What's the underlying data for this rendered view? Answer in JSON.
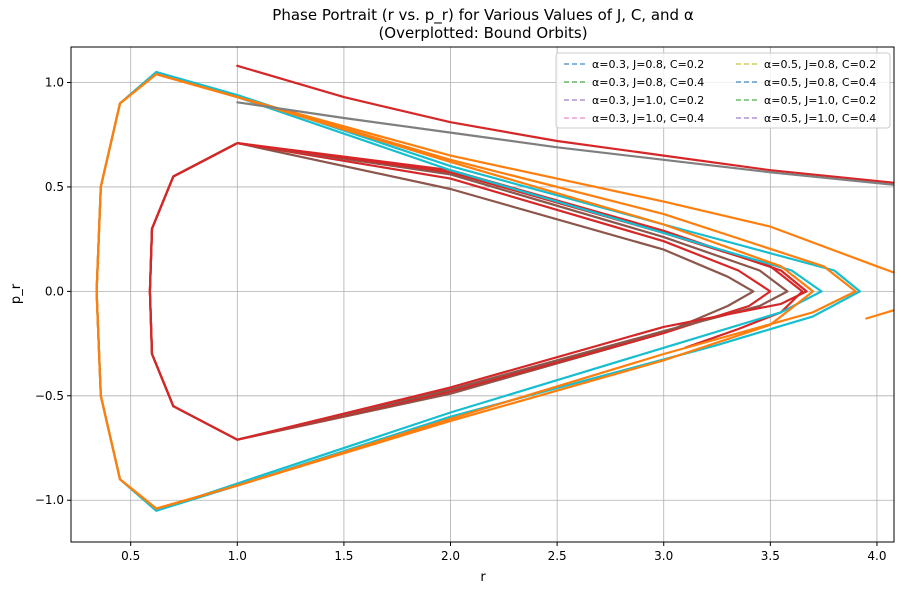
{
  "chart_data": {
    "type": "line",
    "title": "Phase Portrait (r vs. p_r) for Various Values of J, C, and α",
    "subtitle": "(Overplotted: Bound Orbits)",
    "xlabel": "r",
    "ylabel": "p_r",
    "xlim": [
      0.22,
      4.08
    ],
    "ylim": [
      -1.2,
      1.17
    ],
    "x_ticks": [
      {
        "value": 0.5,
        "label": "0.5"
      },
      {
        "value": 1.0,
        "label": "1.0"
      },
      {
        "value": 1.5,
        "label": "1.5"
      },
      {
        "value": 2.0,
        "label": "2.0"
      },
      {
        "value": 2.5,
        "label": "2.5"
      },
      {
        "value": 3.0,
        "label": "3.0"
      },
      {
        "value": 3.5,
        "label": "3.5"
      },
      {
        "value": 4.0,
        "label": "4.0"
      }
    ],
    "y_ticks": [
      {
        "value": -1.0,
        "label": "−1.0"
      },
      {
        "value": -0.5,
        "label": "−0.5"
      },
      {
        "value": 0.0,
        "label": "0.0"
      },
      {
        "value": 0.5,
        "label": "0.5"
      },
      {
        "value": 1.0,
        "label": "1.0"
      }
    ],
    "grid": true,
    "legend_position": "top-right",
    "legend_columns": 2,
    "legend": [
      {
        "label": "α=0.3, J=0.8, C=0.2",
        "color": "#1f77b4",
        "style": "dashed"
      },
      {
        "label": "α=0.3, J=0.8, C=0.4",
        "color": "#2ca02c",
        "style": "dashed"
      },
      {
        "label": "α=0.3, J=1.0, C=0.2",
        "color": "#9467bd",
        "style": "dashed"
      },
      {
        "label": "α=0.3, J=1.0, C=0.4",
        "color": "#e377c2",
        "style": "dashed"
      },
      {
        "label": "α=0.5, J=0.8, C=0.2",
        "color": "#bcbd22",
        "style": "dashed"
      },
      {
        "label": "α=0.5, J=0.8, C=0.4",
        "color": "#1f77b4",
        "style": "dashed"
      },
      {
        "label": "α=0.5, J=1.0, C=0.2",
        "color": "#2ca02c",
        "style": "dashed"
      },
      {
        "label": "α=0.5, J=1.0, C=0.4",
        "color": "#9467bd",
        "style": "dashed"
      }
    ],
    "series": [
      {
        "color": "#8c564b",
        "points": [
          [
            1.0,
            0.71
          ],
          [
            0.7,
            0.55
          ],
          [
            0.6,
            0.3
          ],
          [
            0.59,
            0.0
          ],
          [
            0.6,
            -0.3
          ],
          [
            0.7,
            -0.55
          ],
          [
            1.0,
            -0.71
          ],
          [
            2.0,
            -0.49
          ],
          [
            3.0,
            -0.2
          ],
          [
            3.3,
            -0.07
          ],
          [
            3.42,
            0.0
          ],
          [
            3.3,
            0.07
          ],
          [
            3.0,
            0.2
          ],
          [
            2.0,
            0.49
          ],
          [
            1.0,
            0.71
          ]
        ]
      },
      {
        "color": "#d62728",
        "points": [
          [
            1.0,
            0.71
          ],
          [
            0.7,
            0.55
          ],
          [
            0.6,
            0.3
          ],
          [
            0.59,
            0.0
          ],
          [
            0.6,
            -0.3
          ],
          [
            0.7,
            -0.55
          ],
          [
            1.0,
            -0.71
          ],
          [
            2.0,
            -0.48
          ],
          [
            3.0,
            -0.2
          ],
          [
            3.4,
            -0.07
          ],
          [
            3.5,
            0.0
          ],
          [
            3.35,
            0.1
          ],
          [
            3.0,
            0.24
          ],
          [
            2.0,
            0.54
          ],
          [
            1.0,
            0.71
          ]
        ]
      },
      {
        "color": "#8c564b",
        "points": [
          [
            1.0,
            0.71
          ],
          [
            0.7,
            0.55
          ],
          [
            0.6,
            0.3
          ],
          [
            0.59,
            0.0
          ],
          [
            0.6,
            -0.3
          ],
          [
            0.7,
            -0.55
          ],
          [
            1.0,
            -0.71
          ],
          [
            2.0,
            -0.47
          ],
          [
            3.0,
            -0.19
          ],
          [
            3.45,
            -0.07
          ],
          [
            3.58,
            0.0
          ],
          [
            3.45,
            0.1
          ],
          [
            3.0,
            0.26
          ],
          [
            2.0,
            0.56
          ],
          [
            1.0,
            0.71
          ]
        ]
      },
      {
        "color": "#d62728",
        "points": [
          [
            1.0,
            0.71
          ],
          [
            0.7,
            0.55
          ],
          [
            0.6,
            0.3
          ],
          [
            0.59,
            0.0
          ],
          [
            0.6,
            -0.3
          ],
          [
            0.7,
            -0.55
          ],
          [
            1.0,
            -0.71
          ],
          [
            2.0,
            -0.46
          ],
          [
            3.0,
            -0.17
          ],
          [
            3.55,
            -0.06
          ],
          [
            3.67,
            0.0
          ],
          [
            3.55,
            0.1
          ],
          [
            3.0,
            0.29
          ],
          [
            2.0,
            0.58
          ],
          [
            1.0,
            0.71
          ]
        ]
      },
      {
        "color": "#d62728",
        "points": [
          [
            3.1,
            -0.27
          ],
          [
            3.35,
            -0.18
          ],
          [
            3.55,
            -0.1
          ],
          [
            3.65,
            0.0
          ],
          [
            3.5,
            0.12
          ],
          [
            3.0,
            0.28
          ],
          [
            2.0,
            0.57
          ],
          [
            1.0,
            0.71
          ]
        ]
      },
      {
        "color": "#17becf",
        "points": [
          [
            0.62,
            1.05
          ],
          [
            0.45,
            0.9
          ],
          [
            0.36,
            0.5
          ],
          [
            0.34,
            0.0
          ],
          [
            0.36,
            -0.5
          ],
          [
            0.45,
            -0.9
          ],
          [
            0.62,
            -1.05
          ],
          [
            1.0,
            -0.92
          ],
          [
            2.0,
            -0.58
          ],
          [
            3.0,
            -0.27
          ],
          [
            3.55,
            -0.1
          ],
          [
            3.74,
            0.0
          ],
          [
            3.6,
            0.1
          ],
          [
            3.0,
            0.28
          ],
          [
            2.0,
            0.58
          ],
          [
            1.0,
            0.93
          ],
          [
            0.62,
            1.05
          ]
        ]
      },
      {
        "color": "#17becf",
        "points": [
          [
            0.62,
            1.05
          ],
          [
            0.45,
            0.9
          ],
          [
            0.36,
            0.5
          ],
          [
            0.34,
            0.0
          ],
          [
            0.36,
            -0.5
          ],
          [
            0.45,
            -0.9
          ],
          [
            0.62,
            -1.05
          ],
          [
            1.0,
            -0.93
          ],
          [
            2.0,
            -0.6
          ],
          [
            3.24,
            -0.26
          ],
          [
            3.7,
            -0.12
          ],
          [
            3.92,
            0.0
          ],
          [
            3.8,
            0.1
          ],
          [
            3.0,
            0.32
          ],
          [
            2.0,
            0.6
          ],
          [
            1.0,
            0.94
          ],
          [
            0.62,
            1.05
          ]
        ]
      },
      {
        "color": "#ff7f0e",
        "points": [
          [
            0.62,
            1.04
          ],
          [
            0.45,
            0.9
          ],
          [
            0.36,
            0.5
          ],
          [
            0.34,
            0.0
          ],
          [
            0.36,
            -0.5
          ],
          [
            0.45,
            -0.9
          ],
          [
            0.62,
            -1.04
          ],
          [
            1.0,
            -0.93
          ],
          [
            2.0,
            -0.62
          ],
          [
            3.0,
            -0.33
          ],
          [
            3.5,
            -0.16
          ],
          [
            3.7,
            0.0
          ],
          [
            3.55,
            0.12
          ],
          [
            3.0,
            0.32
          ],
          [
            2.0,
            0.62
          ],
          [
            1.0,
            0.93
          ],
          [
            0.62,
            1.04
          ]
        ]
      },
      {
        "color": "#ff7f0e",
        "points": [
          [
            0.62,
            1.04
          ],
          [
            0.45,
            0.9
          ],
          [
            0.36,
            0.5
          ],
          [
            0.34,
            0.0
          ],
          [
            0.36,
            -0.5
          ],
          [
            0.45,
            -0.9
          ],
          [
            0.62,
            -1.04
          ],
          [
            1.0,
            -0.93
          ],
          [
            2.0,
            -0.61
          ],
          [
            3.0,
            -0.3
          ],
          [
            3.7,
            -0.1
          ],
          [
            3.9,
            0.0
          ],
          [
            3.75,
            0.12
          ],
          [
            3.0,
            0.37
          ],
          [
            2.0,
            0.63
          ],
          [
            1.0,
            0.93
          ],
          [
            0.62,
            1.04
          ]
        ]
      },
      {
        "color": "#ff7f0e",
        "points": [
          [
            0.62,
            1.04
          ],
          [
            1.0,
            0.93
          ],
          [
            2.0,
            0.65
          ],
          [
            3.0,
            0.43
          ],
          [
            3.5,
            0.31
          ],
          [
            4.0,
            0.12
          ],
          [
            4.08,
            0.09
          ]
        ]
      },
      {
        "color": "#ff7f0e",
        "points": [
          [
            3.95,
            -0.13
          ],
          [
            4.08,
            -0.09
          ]
        ]
      },
      {
        "color": "#d62728",
        "points": [
          [
            1.0,
            1.08
          ],
          [
            1.5,
            0.93
          ],
          [
            2.0,
            0.81
          ],
          [
            2.5,
            0.72
          ],
          [
            3.0,
            0.65
          ],
          [
            3.5,
            0.58
          ],
          [
            4.08,
            0.52
          ]
        ]
      },
      {
        "color": "#7f7f7f",
        "points": [
          [
            1.0,
            0.905
          ],
          [
            1.5,
            0.83
          ],
          [
            2.0,
            0.76
          ],
          [
            2.5,
            0.69
          ],
          [
            3.0,
            0.63
          ],
          [
            3.5,
            0.57
          ],
          [
            4.08,
            0.51
          ]
        ]
      }
    ]
  }
}
